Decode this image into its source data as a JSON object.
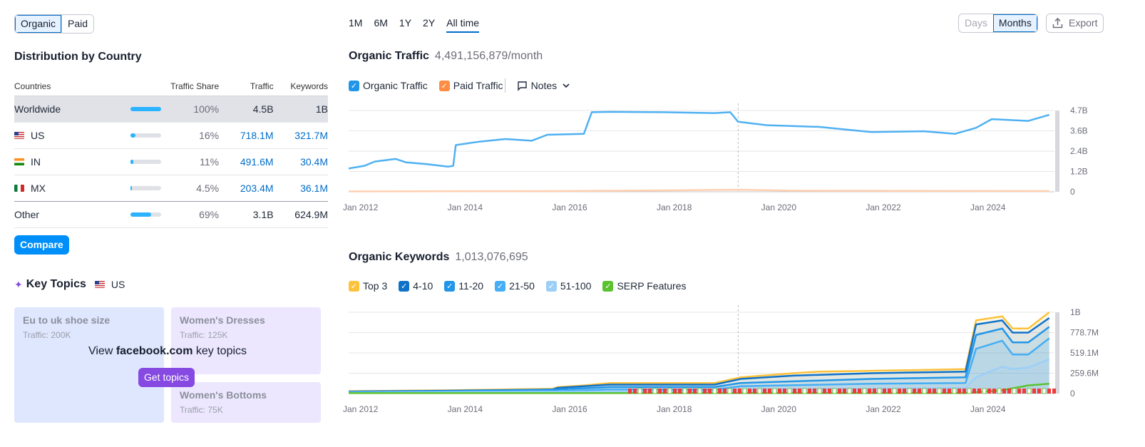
{
  "filters": {
    "organic": "Organic",
    "paid": "Paid"
  },
  "distribution": {
    "title": "Distribution by Country",
    "columns": [
      "Countries",
      "Traffic Share",
      "Traffic",
      "Keywords"
    ],
    "rows": [
      {
        "country": "Worldwide",
        "share": "100%",
        "share_value": 1.0,
        "traffic": "4.5B",
        "keywords": "1B"
      },
      {
        "country": "US",
        "share": "16%",
        "share_value": 0.16,
        "traffic": "718.1M",
        "keywords": "321.7M"
      },
      {
        "country": "IN",
        "share": "11%",
        "share_value": 0.11,
        "traffic": "491.6M",
        "keywords": "30.4M"
      },
      {
        "country": "MX",
        "share": "4.5%",
        "share_value": 0.045,
        "traffic": "203.4M",
        "keywords": "36.1M"
      },
      {
        "country": "Other",
        "share": "69%",
        "share_value": 0.69,
        "traffic": "3.1B",
        "keywords": "624.9M"
      }
    ],
    "compare_label": "Compare"
  },
  "key_topics": {
    "title": "Key Topics",
    "country": "US",
    "cards": [
      {
        "title": "Eu to uk shoe size",
        "traffic": "Traffic: 200K"
      },
      {
        "title": "Women's Dresses",
        "traffic": "Traffic: 125K"
      },
      {
        "title": "Women's Bottoms",
        "traffic": "Traffic: 75K"
      }
    ],
    "overlay_prefix": "View",
    "overlay_domain": "facebook.com",
    "overlay_suffix": "key topics",
    "cta": "Get topics"
  },
  "periods": [
    "1M",
    "6M",
    "1Y",
    "2Y",
    "All time"
  ],
  "active_period": "All time",
  "granularity": {
    "days": "Days",
    "months": "Months"
  },
  "export_label": "Export",
  "traffic_chart": {
    "title": "Organic Traffic",
    "value": "4,491,156,879/month",
    "legend": {
      "organic": "Organic Traffic",
      "paid": "Paid Traffic",
      "notes": "Notes"
    }
  },
  "keywords_chart": {
    "title": "Organic Keywords",
    "value": "1,013,076,695",
    "legend": {
      "top3": "Top 3",
      "p4_10": "4-10",
      "p11_20": "11-20",
      "p21_50": "21-50",
      "p51_100": "51-100",
      "serp": "SERP Features"
    }
  },
  "colors": {
    "organic": "#4fb1f2",
    "paid": "#ff8c43",
    "top3": "#fdc23c",
    "p4_10": "#0f72c9",
    "p11_20": "#2196e8",
    "p21_50": "#45aef5",
    "p51_100": "#9ccff7",
    "serp": "#59c22e"
  },
  "chart_data": [
    {
      "type": "line",
      "title": "Organic Traffic",
      "x_labels": [
        "Jan 2012",
        "Jan 2014",
        "Jan 2016",
        "Jan 2018",
        "Jan 2020",
        "Jan 2022",
        "Jan 2024"
      ],
      "y_ticks": [
        "0",
        "1.2B",
        "2.4B",
        "3.6B",
        "4.7B"
      ],
      "ylim": [
        0,
        4.7
      ],
      "x_range": [
        2012.0,
        2025.5
      ],
      "series": [
        {
          "name": "Organic Traffic",
          "points": [
            [
              2012.0,
              1.35
            ],
            [
              2012.3,
              1.5
            ],
            [
              2012.5,
              1.75
            ],
            [
              2012.9,
              1.9
            ],
            [
              2013.1,
              1.7
            ],
            [
              2013.5,
              1.6
            ],
            [
              2013.9,
              1.45
            ],
            [
              2014.0,
              1.5
            ],
            [
              2014.05,
              2.7
            ],
            [
              2014.5,
              2.9
            ],
            [
              2015.0,
              3.05
            ],
            [
              2015.5,
              2.95
            ],
            [
              2015.8,
              3.3
            ],
            [
              2016.5,
              3.35
            ],
            [
              2016.65,
              4.6
            ],
            [
              2017.0,
              4.62
            ],
            [
              2018.0,
              4.6
            ],
            [
              2019.0,
              4.55
            ],
            [
              2019.3,
              4.6
            ],
            [
              2019.45,
              4.05
            ],
            [
              2020.0,
              3.85
            ],
            [
              2021.0,
              3.75
            ],
            [
              2022.0,
              3.45
            ],
            [
              2023.0,
              3.5
            ],
            [
              2023.6,
              3.35
            ],
            [
              2024.0,
              3.7
            ],
            [
              2024.3,
              4.2
            ],
            [
              2025.0,
              4.1
            ],
            [
              2025.4,
              4.45
            ]
          ]
        },
        {
          "name": "Paid Traffic",
          "points": [
            [
              2012.0,
              0.02
            ],
            [
              2016.0,
              0.04
            ],
            [
              2018.0,
              0.08
            ],
            [
              2019.5,
              0.12
            ],
            [
              2020.5,
              0.06
            ],
            [
              2025.4,
              0.04
            ]
          ]
        }
      ]
    },
    {
      "type": "area",
      "title": "Organic Keywords",
      "x_labels": [
        "Jan 2012",
        "Jan 2014",
        "Jan 2016",
        "Jan 2018",
        "Jan 2020",
        "Jan 2022",
        "Jan 2024"
      ],
      "y_ticks": [
        "0",
        "259.6M",
        "519.1M",
        "778.7M",
        "1B"
      ],
      "ylim": [
        0,
        1.0
      ],
      "x_range": [
        2012.0,
        2025.5
      ],
      "series": [
        {
          "name": "Top 3",
          "points": [
            [
              2012.0,
              0.03
            ],
            [
              2014.0,
              0.04
            ],
            [
              2015.9,
              0.06
            ],
            [
              2016.0,
              0.08
            ],
            [
              2016.5,
              0.1
            ],
            [
              2017.0,
              0.13
            ],
            [
              2019.0,
              0.13
            ],
            [
              2019.5,
              0.2
            ],
            [
              2020.5,
              0.25
            ],
            [
              2021.0,
              0.27
            ],
            [
              2022.0,
              0.28
            ],
            [
              2023.0,
              0.29
            ],
            [
              2023.8,
              0.3
            ],
            [
              2024.0,
              0.9
            ],
            [
              2024.5,
              0.95
            ],
            [
              2024.7,
              0.8
            ],
            [
              2025.0,
              0.8
            ],
            [
              2025.4,
              1.0
            ]
          ]
        },
        {
          "name": "4-10",
          "points": [
            [
              2012.0,
              0.025
            ],
            [
              2014.0,
              0.035
            ],
            [
              2015.9,
              0.05
            ],
            [
              2016.0,
              0.07
            ],
            [
              2016.5,
              0.09
            ],
            [
              2017.0,
              0.11
            ],
            [
              2019.0,
              0.11
            ],
            [
              2019.5,
              0.18
            ],
            [
              2020.5,
              0.22
            ],
            [
              2022.0,
              0.25
            ],
            [
              2023.8,
              0.27
            ],
            [
              2024.0,
              0.85
            ],
            [
              2024.5,
              0.9
            ],
            [
              2024.7,
              0.75
            ],
            [
              2025.0,
              0.75
            ],
            [
              2025.4,
              0.93
            ]
          ]
        },
        {
          "name": "11-20",
          "points": [
            [
              2012.0,
              0.02
            ],
            [
              2014.0,
              0.03
            ],
            [
              2016.0,
              0.05
            ],
            [
              2017.0,
              0.08
            ],
            [
              2019.0,
              0.08
            ],
            [
              2019.5,
              0.13
            ],
            [
              2022.0,
              0.18
            ],
            [
              2023.8,
              0.2
            ],
            [
              2024.0,
              0.72
            ],
            [
              2024.5,
              0.8
            ],
            [
              2024.7,
              0.63
            ],
            [
              2025.0,
              0.63
            ],
            [
              2025.4,
              0.82
            ]
          ]
        },
        {
          "name": "21-50",
          "points": [
            [
              2012.0,
              0.015
            ],
            [
              2016.0,
              0.03
            ],
            [
              2017.0,
              0.05
            ],
            [
              2019.0,
              0.05
            ],
            [
              2019.5,
              0.09
            ],
            [
              2022.0,
              0.12
            ],
            [
              2023.8,
              0.13
            ],
            [
              2024.0,
              0.55
            ],
            [
              2024.5,
              0.65
            ],
            [
              2024.7,
              0.48
            ],
            [
              2025.0,
              0.48
            ],
            [
              2025.4,
              0.68
            ]
          ]
        },
        {
          "name": "51-100",
          "points": [
            [
              2012.0,
              0.01
            ],
            [
              2016.0,
              0.02
            ],
            [
              2019.0,
              0.03
            ],
            [
              2019.5,
              0.05
            ],
            [
              2023.8,
              0.07
            ],
            [
              2024.0,
              0.2
            ],
            [
              2024.5,
              0.33
            ],
            [
              2024.7,
              0.3
            ],
            [
              2025.0,
              0.32
            ],
            [
              2025.4,
              0.42
            ]
          ]
        },
        {
          "name": "SERP Features",
          "points": [
            [
              2012.0,
              0.005
            ],
            [
              2023.8,
              0.005
            ],
            [
              2024.5,
              0.04
            ],
            [
              2025.0,
              0.1
            ],
            [
              2025.4,
              0.12
            ]
          ]
        }
      ]
    }
  ]
}
